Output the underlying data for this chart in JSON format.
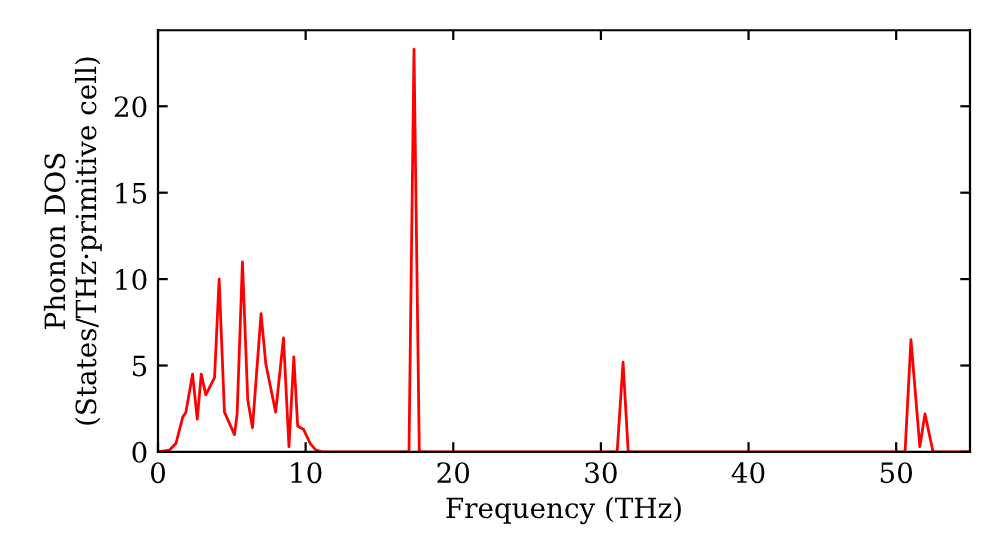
{
  "chart_data": {
    "type": "line",
    "xlabel": "Frequency (THz)",
    "ylabel": "Phonon DOS\n(States/THz·primitive cell)",
    "xlim": [
      0,
      55
    ],
    "ylim": [
      0,
      24.4
    ],
    "xticks": [
      0,
      10,
      20,
      30,
      40,
      50
    ],
    "yticks": [
      0,
      5,
      10,
      15,
      20
    ],
    "grid": false,
    "marker": "none",
    "line_style": "solid",
    "series": [
      {
        "color": "#ff0000",
        "x": [
          0,
          0.77,
          1.22,
          1.67,
          1.89,
          2.34,
          2.66,
          2.93,
          3.24,
          3.83,
          4.14,
          4.5,
          5.18,
          5.36,
          5.72,
          6.08,
          6.4,
          6.98,
          7.3,
          7.97,
          8.5,
          8.87,
          9.2,
          9.46,
          9.86,
          10.3,
          10.7,
          11.1,
          17.0,
          17.34,
          17.7,
          31.1,
          31.5,
          31.85,
          50.6,
          51.0,
          51.6,
          51.95,
          52.5,
          55
        ],
        "values": [
          0,
          0.1,
          0.5,
          2.0,
          2.3,
          4.5,
          1.9,
          4.5,
          3.3,
          4.3,
          10.0,
          2.3,
          1.0,
          2.2,
          11.0,
          3.0,
          1.4,
          8.0,
          5.1,
          2.3,
          6.6,
          0.3,
          5.5,
          1.5,
          1.3,
          0.5,
          0.1,
          0,
          0,
          23.3,
          0,
          0,
          5.2,
          0,
          0,
          6.5,
          0.3,
          2.2,
          0,
          0
        ]
      }
    ]
  }
}
